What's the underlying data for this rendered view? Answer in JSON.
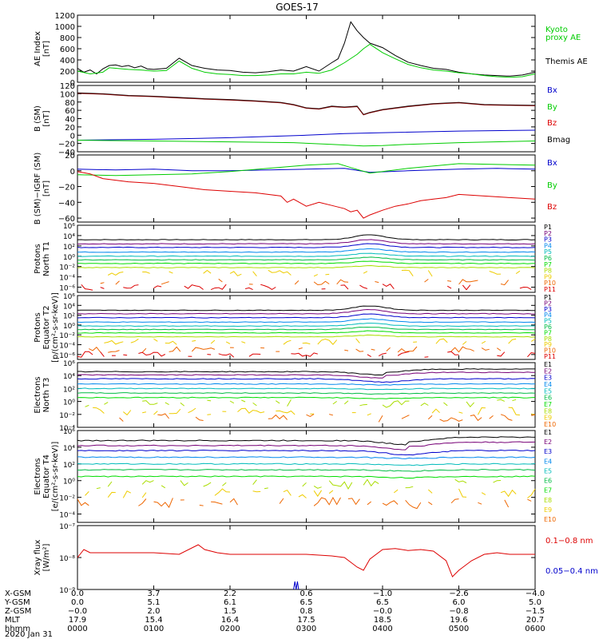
{
  "chart_data": {
    "title": "GOES-17",
    "type": "line",
    "date_label": "2020 Jan 31",
    "colors": {
      "black": "#000000",
      "green": "#00cc00",
      "blue": "#0000cc",
      "red": "#dd0000",
      "darkred": "#7a0000",
      "p": [
        "#000000",
        "#770077",
        "#0000cc",
        "#0088ee",
        "#00bbbb",
        "#00bb44",
        "#00dd00",
        "#aadd00",
        "#eecc00",
        "#ee6600",
        "#dd0000"
      ],
      "e": [
        "#000000",
        "#770077",
        "#0000cc",
        "#0088ee",
        "#00bbbb",
        "#00bb44",
        "#00dd00",
        "#aadd00",
        "#eecc00",
        "#ee6600",
        "#dd0000"
      ]
    },
    "panels": [
      {
        "id": "ae",
        "ylabel": [
          "AE Index",
          "[nT]"
        ],
        "ylim": [
          0,
          1200
        ],
        "yscale": "linear",
        "yticks": [
          "1200",
          "1000",
          "800",
          "600",
          "400",
          "200",
          "0"
        ],
        "ytick_values": [
          1200,
          1000,
          800,
          600,
          400,
          200,
          0
        ],
        "legend": [
          {
            "text": "Kyoto",
            "color": "green"
          },
          {
            "text": "proxy AE",
            "color": "green"
          },
          {
            "text": "Themis AE",
            "color": "black"
          }
        ],
        "series": [
          {
            "name": "Themis AE",
            "color": "black",
            "x": [
              0,
              5,
              10,
              15,
              20,
              25,
              30,
              35,
              40,
              45,
              50,
              55,
              60,
              70,
              80,
              90,
              100,
              110,
              120,
              130,
              140,
              150,
              160,
              170,
              180,
              190,
              200,
              205,
              210,
              215,
              220,
              225,
              230,
              240,
              250,
              260,
              270,
              280,
              290,
              300,
              310,
              320,
              330,
              340,
              350,
              360
            ],
            "y": [
              250,
              180,
              220,
              150,
              240,
              300,
              310,
              280,
              300,
              260,
              290,
              240,
              230,
              250,
              430,
              300,
              250,
              220,
              210,
              180,
              170,
              190,
              220,
              200,
              280,
              200,
              350,
              420,
              700,
              1080,
              920,
              800,
              700,
              620,
              480,
              360,
              300,
              250,
              230,
              180,
              150,
              130,
              120,
              110,
              130,
              180
            ]
          },
          {
            "name": "Kyoto proxy AE",
            "color": "green",
            "x": [
              0,
              10,
              20,
              25,
              30,
              40,
              50,
              60,
              70,
              80,
              90,
              100,
              110,
              120,
              130,
              140,
              150,
              160,
              170,
              180,
              190,
              200,
              210,
              220,
              225,
              230,
              240,
              250,
              260,
              270,
              280,
              290,
              300,
              310,
              320,
              330,
              340,
              350,
              360
            ],
            "y": [
              200,
              150,
              180,
              260,
              250,
              230,
              220,
              200,
              210,
              380,
              250,
              180,
              150,
              140,
              120,
              120,
              130,
              150,
              150,
              180,
              160,
              220,
              350,
              500,
              600,
              680,
              530,
              420,
              320,
              260,
              220,
              200,
              170,
              150,
              120,
              100,
              90,
              100,
              150
            ]
          }
        ]
      },
      {
        "id": "bsm",
        "ylabel": [
          "B (SM)",
          "[nT]"
        ],
        "ylim": [
          -40,
          120
        ],
        "yscale": "linear",
        "yticks": [
          "120",
          "100",
          "80",
          "60",
          "40",
          "20",
          "0",
          "−20",
          "−40"
        ],
        "ytick_values": [
          120,
          100,
          80,
          60,
          40,
          20,
          0,
          -20,
          -40
        ],
        "legend": [
          {
            "text": "Bx",
            "color": "blue"
          },
          {
            "text": "By",
            "color": "green"
          },
          {
            "text": "Bz",
            "color": "red"
          },
          {
            "text": "Bmag",
            "color": "black"
          }
        ],
        "series": [
          {
            "name": "Bmag",
            "color": "black",
            "x": [
              0,
              20,
              40,
              60,
              80,
              100,
              120,
              140,
              160,
              170,
              180,
              190,
              200,
              210,
              220,
              225,
              230,
              240,
              260,
              280,
              300,
              320,
              340,
              360
            ],
            "y": [
              102,
              100,
              96,
              94,
              91,
              88,
              86,
              83,
              79,
              74,
              66,
              64,
              70,
              68,
              70,
              50,
              55,
              62,
              70,
              76,
              79,
              74,
              73,
              72
            ]
          },
          {
            "name": "Bz",
            "color": "darkred",
            "x": [
              0,
              20,
              40,
              60,
              80,
              100,
              120,
              140,
              160,
              170,
              180,
              190,
              200,
              210,
              220,
              225,
              230,
              240,
              260,
              280,
              300,
              320,
              340,
              360
            ],
            "y": [
              101,
              99,
              95,
              93,
              90,
              87,
              85,
              82,
              78,
              73,
              65,
              63,
              69,
              67,
              69,
              49,
              54,
              61,
              69,
              75,
              78,
              73,
              72,
              71
            ]
          },
          {
            "name": "Bx",
            "color": "blue",
            "x": [
              0,
              60,
              120,
              180,
              210,
              240,
              300,
              360
            ],
            "y": [
              -12,
              -10,
              -6,
              0,
              4,
              6,
              10,
              12
            ]
          },
          {
            "name": "By",
            "color": "green",
            "x": [
              0,
              60,
              120,
              170,
              200,
              225,
              240,
              260,
              300,
              360
            ],
            "y": [
              -12,
              -14,
              -16,
              -18,
              -22,
              -26,
              -25,
              -22,
              -18,
              -14
            ]
          }
        ]
      },
      {
        "id": "bigrf",
        "ylabel": [
          "B (SM)−IGRF (SM)",
          "[nT]"
        ],
        "ylim": [
          -65,
          20
        ],
        "yscale": "linear",
        "yticks": [
          "20",
          "0",
          "−20",
          "−40",
          "−60"
        ],
        "ytick_values": [
          20,
          0,
          -20,
          -40,
          -60
        ],
        "legend": [
          {
            "text": "Bx",
            "color": "blue"
          },
          {
            "text": "By",
            "color": "green"
          },
          {
            "text": "Bz",
            "color": "red"
          }
        ],
        "series": [
          {
            "name": "Bx",
            "color": "blue",
            "x": [
              0,
              30,
              60,
              90,
              120,
              150,
              180,
              210,
              230,
              260,
              300,
              330,
              360
            ],
            "y": [
              2,
              1,
              2,
              0,
              0,
              1,
              2,
              3,
              -2,
              0,
              2,
              3,
              2
            ]
          },
          {
            "name": "By",
            "color": "green",
            "x": [
              0,
              30,
              60,
              90,
              120,
              150,
              180,
              205,
              215,
              230,
              260,
              300,
              330,
              360
            ],
            "y": [
              -5,
              -6,
              -5,
              -4,
              -1,
              3,
              7,
              9,
              4,
              -3,
              3,
              9,
              8,
              7
            ]
          },
          {
            "name": "Bz",
            "color": "red",
            "x": [
              0,
              10,
              20,
              30,
              40,
              60,
              80,
              90,
              100,
              120,
              140,
              160,
              165,
              170,
              180,
              190,
              200,
              210,
              215,
              220,
              225,
              230,
              240,
              250,
              260,
              270,
              280,
              290,
              300,
              320,
              340,
              360
            ],
            "y": [
              -1,
              -4,
              -10,
              -12,
              -14,
              -16,
              -20,
              -22,
              -24,
              -26,
              -28,
              -32,
              -40,
              -36,
              -45,
              -40,
              -44,
              -48,
              -52,
              -50,
              -60,
              -56,
              -50,
              -45,
              -42,
              -38,
              -36,
              -34,
              -30,
              -32,
              -34,
              -36
            ]
          }
        ]
      },
      {
        "id": "protons_n",
        "ylabel": [
          "Protons",
          "North T1"
        ],
        "ylim_log10": [
          -7,
          6
        ],
        "yscale": "log",
        "yticks": [
          "10⁶",
          "10⁴",
          "10²",
          "10⁰",
          "10⁻²",
          "10⁻⁴",
          "10⁻⁶"
        ],
        "ytick_exp": [
          6,
          4,
          2,
          0,
          -2,
          -4,
          -6
        ],
        "legend_key": "p",
        "legend": [
          "P1",
          "P2",
          "P3",
          "P4",
          "P5",
          "P6",
          "P7",
          "P8",
          "P9",
          "P10",
          "P11"
        ],
        "levels_log10": [
          3.2,
          2.4,
          1.7,
          0.8,
          0.0,
          -0.7,
          -1.4,
          -2.2,
          -3.3,
          -5,
          -6
        ],
        "bump_at": 230
      },
      {
        "id": "protons_eq",
        "ylabel": [
          "Protons",
          "Equator T2",
          "[p/(cm²-s-sr-keV)]"
        ],
        "ylim_log10": [
          -7,
          6
        ],
        "yscale": "log",
        "yticks": [
          "10⁶",
          "10⁴",
          "10²",
          "10⁰",
          "10⁻²",
          "10⁻⁴",
          "10⁻⁶"
        ],
        "ytick_exp": [
          6,
          4,
          2,
          0,
          -2,
          -4,
          -6
        ],
        "legend_key": "p",
        "legend": [
          "P1",
          "P2",
          "P3",
          "P4",
          "P5",
          "P6",
          "P7",
          "P8",
          "P9",
          "P10",
          "P11"
        ],
        "levels_log10": [
          3.0,
          2.3,
          1.5,
          0.6,
          -0.2,
          -0.9,
          -1.6,
          -2.4,
          -3.4,
          -5,
          -6
        ],
        "bump_at": 230
      },
      {
        "id": "electrons_n",
        "ylabel": [
          "Electrons",
          "North T3"
        ],
        "ylim_log10": [
          -4,
          6
        ],
        "yscale": "log",
        "yticks": [
          "10⁶",
          "10⁴",
          "10²",
          "10⁰",
          "10⁻²",
          "10⁻⁴"
        ],
        "ytick_exp": [
          6,
          4,
          2,
          0,
          -2,
          -4
        ],
        "legend_key": "e",
        "legend": [
          "E1",
          "E2",
          "E3",
          "E4",
          "E5",
          "E6",
          "E7",
          "E8",
          "E9",
          "E10"
        ],
        "levels_log10": [
          4.6,
          4.1,
          3.5,
          2.7,
          2.0,
          1.3,
          0.6,
          -0.3,
          -1.5,
          -2.5
        ],
        "dip_at": 240
      },
      {
        "id": "electrons_eq",
        "ylabel": [
          "Electrons",
          "Equator T4",
          "[e/(cm²-s-sr-keV)]"
        ],
        "ylim_log10": [
          -5,
          6
        ],
        "yscale": "log",
        "yticks": [
          "10⁶",
          "10⁴",
          "10²",
          "10⁰",
          "10⁻²",
          "10⁻⁴"
        ],
        "ytick_exp": [
          6,
          4,
          2,
          0,
          -2,
          -4
        ],
        "legend_key": "e",
        "legend": [
          "E1",
          "E2",
          "E3",
          "E4",
          "E5",
          "E6",
          "E7",
          "E8",
          "E9",
          "E10"
        ],
        "levels_log10": [
          4.8,
          4.2,
          3.6,
          2.8,
          2.0,
          1.3,
          0.5,
          -0.4,
          -1.5,
          -2.6
        ],
        "dip_at": 260
      },
      {
        "id": "xray",
        "ylabel": [
          "Xray flux",
          "[W/m²]"
        ],
        "ylim_log10": [
          -9,
          -7
        ],
        "yscale": "log",
        "yticks": [
          "10⁻⁷",
          "10⁻⁸",
          "10⁻⁹"
        ],
        "ytick_exp": [
          -7,
          -8,
          -9
        ],
        "legend": [
          {
            "text": "0.1−0.8 nm",
            "color": "red"
          },
          {
            "text": "0.05−0.4 nm",
            "color": "blue"
          }
        ],
        "series": [
          {
            "name": "0.1-0.8 nm",
            "color": "red",
            "x": [
              0,
              5,
              10,
              20,
              40,
              60,
              80,
              95,
              100,
              110,
              120,
              140,
              160,
              180,
              200,
              210,
              220,
              225,
              230,
              240,
              250,
              260,
              270,
              280,
              290,
              295,
              300,
              310,
              320,
              330,
              340,
              350,
              360
            ],
            "y_log10": [
              -8.0,
              -7.75,
              -7.85,
              -7.85,
              -7.85,
              -7.85,
              -7.9,
              -7.6,
              -7.75,
              -7.85,
              -7.9,
              -7.9,
              -7.9,
              -7.9,
              -7.95,
              -8.0,
              -8.3,
              -8.4,
              -8.05,
              -7.75,
              -7.72,
              -7.78,
              -7.75,
              -7.8,
              -8.1,
              -8.6,
              -8.4,
              -8.1,
              -7.9,
              -7.85,
              -7.9,
              -7.9,
              -7.9
            ]
          },
          {
            "name": "0.05-0.4 nm",
            "color": "blue",
            "x": [
              170,
              171,
              172,
              173,
              174
            ],
            "y_log10": [
              -9.0,
              -8.75,
              -9.0,
              -8.75,
              -9.0
            ]
          }
        ]
      }
    ],
    "xaxis": {
      "minutes": [
        0,
        60,
        120,
        180,
        240,
        300,
        360
      ],
      "rows": [
        {
          "label": "X-GSM",
          "values": [
            "0.0",
            "3.7",
            "2.2",
            "0.6",
            "−1.0",
            "−2.6",
            "−4.0"
          ]
        },
        {
          "label": "Y-GSM",
          "values": [
            "0.0",
            "5.1",
            "6.1",
            "6.5",
            "6.5",
            "6.0",
            "5.0"
          ]
        },
        {
          "label": "Z-GSM",
          "values": [
            "−0.0",
            "2.0",
            "1.5",
            "0.8",
            "−0.0",
            "−0.8",
            "−1.5"
          ]
        },
        {
          "label": "MLT",
          "values": [
            "17.9",
            "15.4",
            "16.4",
            "17.5",
            "18.5",
            "19.6",
            "20.7"
          ]
        },
        {
          "label": "hhmm",
          "values": [
            "0000",
            "0100",
            "0200",
            "0300",
            "0400",
            "0500",
            "0600"
          ]
        }
      ]
    }
  }
}
